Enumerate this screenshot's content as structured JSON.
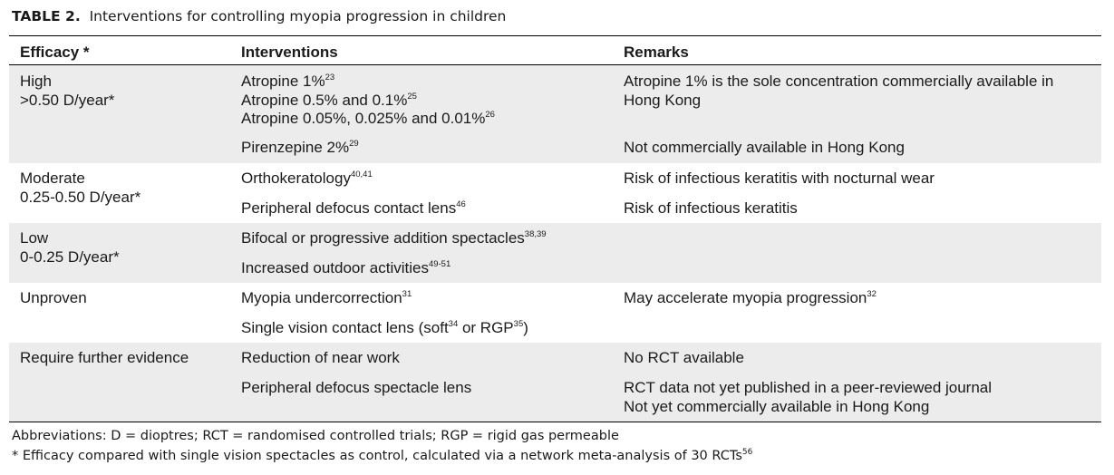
{
  "caption": {
    "label": "TABLE 2.",
    "title": "Interventions for controlling myopia progression in children"
  },
  "headers": {
    "efficacy": "Efficacy *",
    "interventions": "Interventions",
    "remarks": "Remarks"
  },
  "rows": [
    {
      "efficacy": [
        "High",
        ">0.50 D/year*"
      ],
      "items": [
        {
          "lines": [
            {
              "text": "Atropine 1%",
              "ref": "23"
            },
            {
              "text": "Atropine 0.5% and 0.1%",
              "ref": "25"
            },
            {
              "text": "Atropine 0.05%, 0.025% and 0.01%",
              "ref": "26"
            }
          ],
          "remarks": [
            {
              "text": "Atropine 1% is the sole concentration commercially available in"
            },
            {
              "text": "Hong Kong"
            }
          ]
        },
        {
          "lines": [
            {
              "text": "Pirenzepine 2%",
              "ref": "29"
            }
          ],
          "remarks": [
            {
              "text": "Not commercially available in Hong Kong"
            }
          ]
        }
      ]
    },
    {
      "efficacy": [
        "Moderate",
        "0.25-0.50 D/year*"
      ],
      "items": [
        {
          "lines": [
            {
              "text": "Orthokeratology",
              "ref": "40,41"
            }
          ],
          "remarks": [
            {
              "text": "Risk of infectious keratitis with nocturnal wear"
            }
          ]
        },
        {
          "lines": [
            {
              "text": "Peripheral defocus contact lens",
              "ref": "46"
            }
          ],
          "remarks": [
            {
              "text": "Risk of infectious keratitis"
            }
          ]
        }
      ]
    },
    {
      "efficacy": [
        "Low",
        "0-0.25 D/year*"
      ],
      "items": [
        {
          "lines": [
            {
              "text": "Bifocal or progressive addition spectacles",
              "ref": "38,39"
            }
          ],
          "remarks": []
        },
        {
          "lines": [
            {
              "text": "Increased outdoor activities",
              "ref": "49-51"
            }
          ],
          "remarks": []
        }
      ]
    },
    {
      "efficacy": [
        "Unproven"
      ],
      "items": [
        {
          "lines": [
            {
              "text": "Myopia undercorrection",
              "ref": "31"
            }
          ],
          "remarks": [
            {
              "text": "May accelerate myopia progression",
              "ref": "32"
            }
          ]
        },
        {
          "lines": [
            {
              "text": "Single vision contact lens (soft",
              "ref": "34",
              "mid": " or RGP",
              "ref2": "35",
              "tail": ")"
            }
          ],
          "remarks": []
        }
      ]
    },
    {
      "efficacy": [
        "Require further evidence"
      ],
      "items": [
        {
          "lines": [
            {
              "text": "Reduction of near work"
            }
          ],
          "remarks": [
            {
              "text": "No RCT available"
            }
          ]
        },
        {
          "lines": [
            {
              "text": "Peripheral defocus spectacle lens"
            }
          ],
          "remarks": [
            {
              "text": "RCT data not yet published in a peer-reviewed journal"
            },
            {
              "text": "Not yet commercially available in Hong Kong"
            }
          ]
        }
      ]
    }
  ],
  "footnotes": {
    "abbreviations": "Abbreviations: D = dioptres; RCT = randomised controlled trials; RGP = rigid gas permeable",
    "star": "*  Efficacy compared with single vision spectacles as control, calculated via a network meta-analysis of 30 RCTs",
    "star_ref": "56"
  }
}
